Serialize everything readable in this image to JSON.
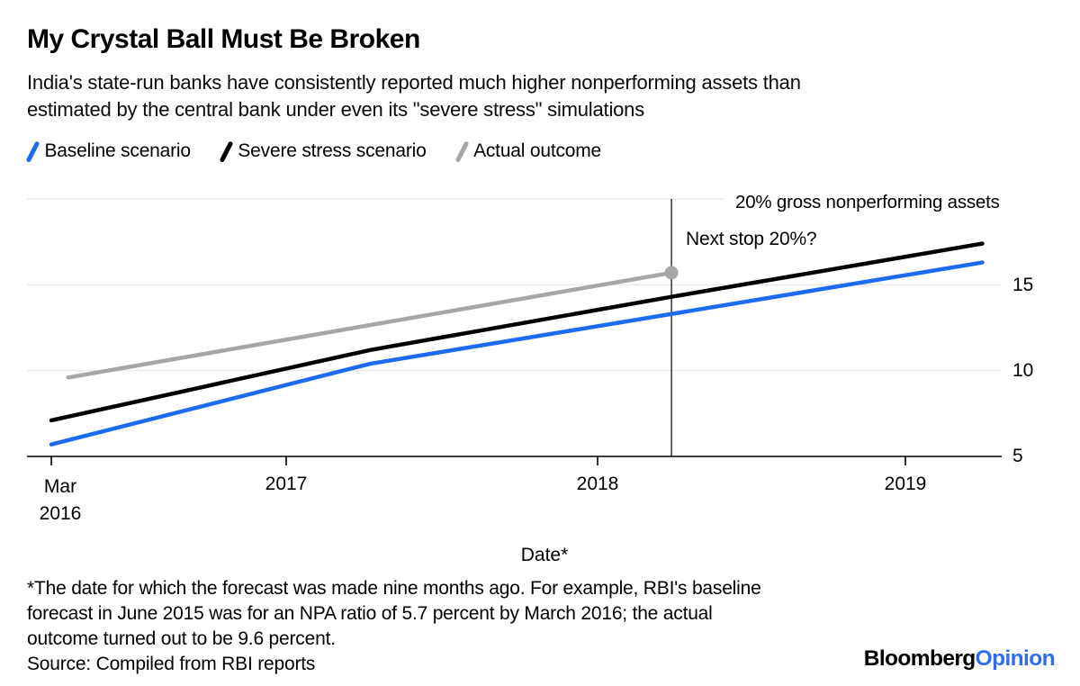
{
  "header": {
    "title": "My Crystal Ball Must Be Broken",
    "subtitle_lines": [
      "India's state-run banks have consistently reported much higher nonperforming assets than",
      "estimated by the central bank under even its \"severe stress\" simulations"
    ]
  },
  "legend": [
    {
      "label": "Baseline scenario",
      "color": "#1c6cf2"
    },
    {
      "label": "Severe stress scenario",
      "color": "#000000"
    },
    {
      "label": "Actual outcome",
      "color": "#a6a6a6"
    }
  ],
  "chart_data": {
    "type": "line",
    "title": "My Crystal Ball Must Be Broken",
    "xlabel": "Date*",
    "ylabel": "",
    "top_axis_label": "20% gross nonperforming assets",
    "annotation": "Next stop 20%?",
    "ylim": [
      5,
      20
    ],
    "grid": true,
    "legend_position": "top",
    "yticks": [
      {
        "label": "15",
        "value": 15
      },
      {
        "label": "10",
        "value": 10
      },
      {
        "label": "5",
        "value": 5
      }
    ],
    "xticks": [
      {
        "label": "Mar",
        "label2": "2016",
        "x": 2016.17
      },
      {
        "label": "2017",
        "x": 2017
      },
      {
        "label": "2018",
        "x": 2018
      },
      {
        "label": "2019",
        "x": 2019
      }
    ],
    "series": [
      {
        "name": "Baseline scenario",
        "color": "#1c6cf2",
        "points": [
          [
            2016.17,
            5.7
          ],
          [
            2017.27,
            10.4
          ],
          [
            2018.24,
            13.3
          ],
          [
            2019.25,
            16.3
          ]
        ]
      },
      {
        "name": "Severe stress scenario",
        "color": "#000000",
        "points": [
          [
            2016.17,
            7.1
          ],
          [
            2017.27,
            11.2
          ],
          [
            2018.24,
            14.3
          ],
          [
            2019.25,
            17.4
          ]
        ]
      },
      {
        "name": "Actual outcome",
        "color": "#a6a6a6",
        "end_dot": true,
        "points": [
          [
            2016.23,
            9.6
          ],
          [
            2018.24,
            15.7
          ]
        ]
      }
    ],
    "vline_x": 2018.24,
    "colors": {
      "grid": "#eaeaea",
      "axis": "#000000",
      "vline": "#000000"
    }
  },
  "footnote": {
    "lines": [
      "*The date for which the forecast was made nine months ago. For example, RBI's baseline",
      "forecast in June 2015 was for an NPA ratio of 5.7 percent by March 2016; the actual",
      "outcome turned out to be 9.6 percent."
    ],
    "source": "Source: Compiled from RBI reports"
  },
  "logo": {
    "black": "Bloomberg",
    "blue": "Opinion",
    "blue_color": "#2e6cf4"
  }
}
